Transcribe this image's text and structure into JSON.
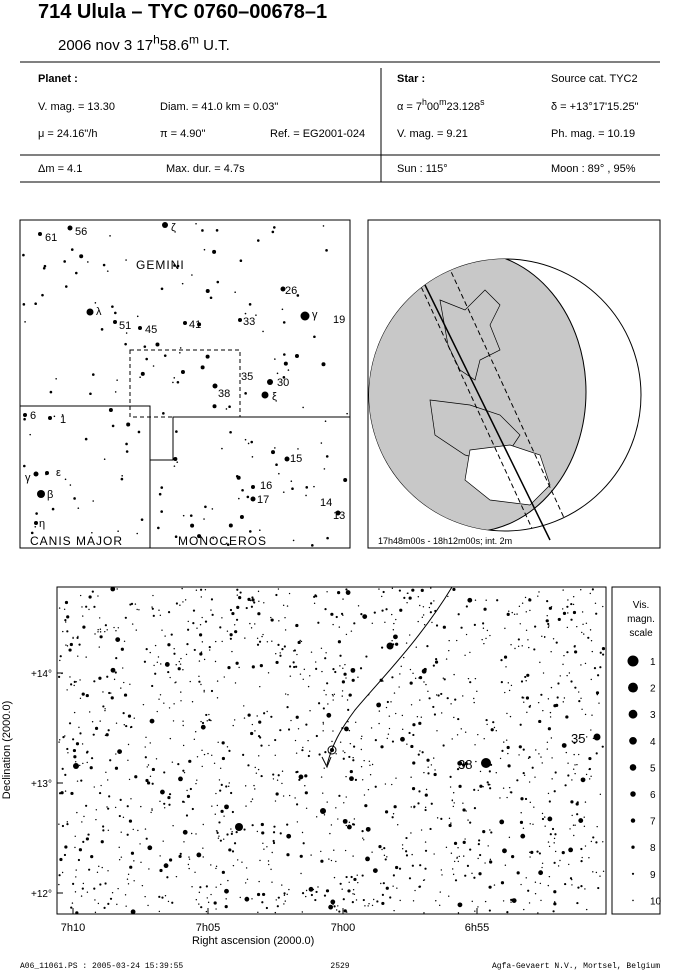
{
  "header": {
    "title": "714 Ulula  –  TYC 0760–00678–1",
    "epoch": [
      "2006 nov  3  17",
      "h",
      "58.6",
      "m",
      " U.T."
    ]
  },
  "planet": {
    "heading": "Planet :",
    "v_mag": "V. mag. = 13.30",
    "diam": "Diam. = 41.0 km = 0.03\"",
    "mu": "μ = 24.16\"/h",
    "parallax": "π = 4.90\"",
    "ref": "Ref. = EG2001-024",
    "delta_m": "Δm = 4.1",
    "max_dur": "Max. dur. = 4.7s"
  },
  "star": {
    "heading": "Star :",
    "source": "Source cat.  TYC2",
    "ra": [
      "α = 7",
      "h",
      "00",
      "m",
      "23.128",
      "s"
    ],
    "dec": "δ = +13°17'15.25\"",
    "v_mag": "V. mag. =  9.21",
    "ph_mag": "Ph. mag. = 10.19",
    "sun": "Sun : 115°",
    "moon": "Moon :  89° , 95%"
  },
  "sky_map": {
    "constellations": [
      "GEMINI",
      "CANIS MAJOR",
      "MONOCEROS"
    ],
    "star_labels": [
      "61",
      "56",
      "ζ",
      "26",
      "γ",
      "19",
      "λ",
      "51",
      "45",
      "41",
      "33",
      "35",
      "30",
      "38",
      "ξ",
      "6",
      "1",
      "15",
      "γ",
      "ε",
      "β",
      "16",
      "17",
      "14",
      "13",
      "η"
    ]
  },
  "globe": {
    "caption": "17h48m00s - 18h12m00s; int.  2m"
  },
  "finder_chart": {
    "x_label": "Right ascension (2000.0)",
    "y_label": "Declination (2000.0)",
    "x_ticks": [
      "7h10",
      "7h05",
      "7h00",
      "6h55"
    ],
    "y_ticks": [
      "+14°",
      "+13°",
      "+12°"
    ],
    "star_labels": [
      "35",
      "38"
    ]
  },
  "scale": {
    "title": [
      "Vis.",
      "magn.",
      "scale"
    ],
    "magnitudes": [
      1,
      2,
      3,
      4,
      5,
      6,
      7,
      8,
      9,
      10
    ]
  },
  "footer": {
    "file": "A06_11061.PS : 2005-03-24 15:39:55",
    "page": "2529",
    "credit": "Agfa-Gevaert N.V., Mortsel, Belgium"
  }
}
